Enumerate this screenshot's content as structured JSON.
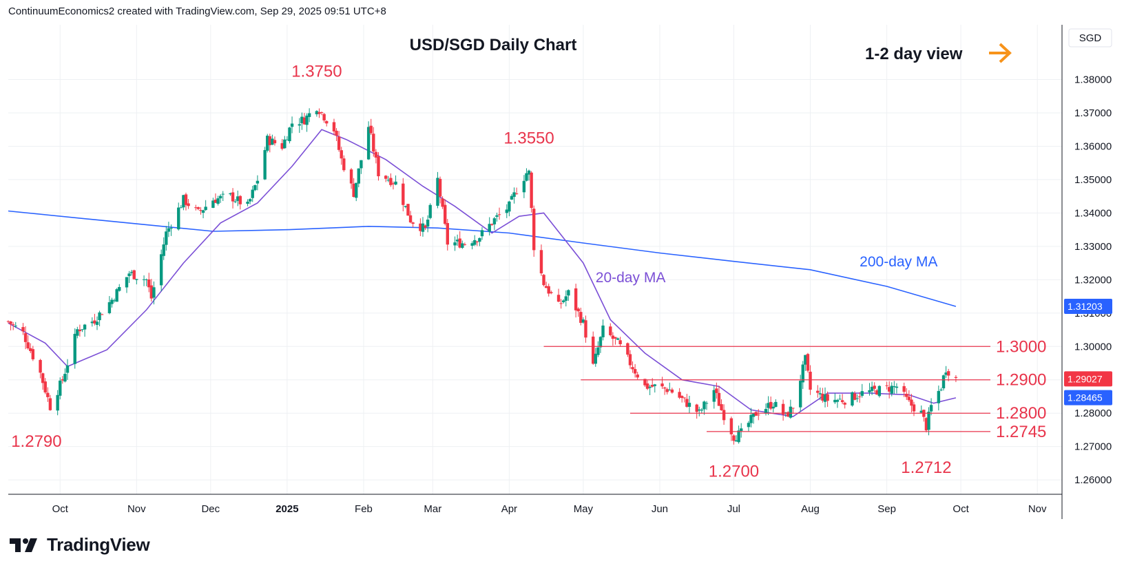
{
  "header": {
    "text": "ContinuumEconomics2 created with TradingView.com, Sep 29, 2025 09:51 UTC+8"
  },
  "logo": {
    "text": "TradingView"
  },
  "currency": "SGD",
  "colors": {
    "up": "#089981",
    "down": "#f23645",
    "ma20": "#7b4fd6",
    "ma200": "#2962ff",
    "level": "#e8344b",
    "arrow": "#f7931a",
    "grid": "#eef0f3"
  },
  "chart_data": {
    "type": "candlestick",
    "title": "USD/SGD Daily Chart",
    "subtitle": "1-2 day view",
    "x_ticks": [
      "Oct",
      "Nov",
      "Dec",
      "2025",
      "Feb",
      "Mar",
      "Apr",
      "May",
      "Jun",
      "Jul",
      "Aug",
      "Sep",
      "Oct",
      "Nov"
    ],
    "y_ticks": [
      "1.38000",
      "1.37000",
      "1.36000",
      "1.35000",
      "1.34000",
      "1.33000",
      "1.32000",
      "1.31000",
      "1.30000",
      "1.29000",
      "1.28000",
      "1.27000",
      "1.26000"
    ],
    "ylim": [
      1.2557,
      1.3964
    ],
    "grid": true,
    "price_path": [
      [
        "2024-09-10",
        1.3075
      ],
      [
        "2024-09-16",
        1.304
      ],
      [
        "2024-09-23",
        1.292
      ],
      [
        "2024-09-27",
        1.282
      ],
      [
        "2024-10-02",
        1.29
      ],
      [
        "2024-10-08",
        1.305
      ],
      [
        "2024-10-15",
        1.308
      ],
      [
        "2024-10-22",
        1.314
      ],
      [
        "2024-10-29",
        1.322
      ],
      [
        "2024-11-05",
        1.32
      ],
      [
        "2024-11-07",
        1.3145
      ],
      [
        "2024-11-13",
        1.334
      ],
      [
        "2024-11-20",
        1.344
      ],
      [
        "2024-11-26",
        1.34
      ],
      [
        "2024-12-02",
        1.344
      ],
      [
        "2024-12-09",
        1.345
      ],
      [
        "2024-12-16",
        1.342
      ],
      [
        "2024-12-20",
        1.35
      ],
      [
        "2024-12-24",
        1.362
      ],
      [
        "2024-12-30",
        1.36
      ],
      [
        "2025-01-03",
        1.367
      ],
      [
        "2025-01-08",
        1.368
      ],
      [
        "2025-01-13",
        1.372
      ],
      [
        "2025-01-20",
        1.365
      ],
      [
        "2025-01-23",
        1.356
      ],
      [
        "2025-01-28",
        1.346
      ],
      [
        "2025-02-03",
        1.366
      ],
      [
        "2025-02-07",
        1.352
      ],
      [
        "2025-02-14",
        1.349
      ],
      [
        "2025-02-20",
        1.338
      ],
      [
        "2025-02-26",
        1.335
      ],
      [
        "2025-03-03",
        1.35
      ],
      [
        "2025-03-07",
        1.331
      ],
      [
        "2025-03-14",
        1.331
      ],
      [
        "2025-03-20",
        1.333
      ],
      [
        "2025-03-26",
        1.338
      ],
      [
        "2025-04-01",
        1.342
      ],
      [
        "2025-04-04",
        1.347
      ],
      [
        "2025-04-08",
        1.352
      ],
      [
        "2025-04-09",
        1.352
      ],
      [
        "2025-04-11",
        1.33
      ],
      [
        "2025-04-15",
        1.319
      ],
      [
        "2025-04-21",
        1.312
      ],
      [
        "2025-04-25",
        1.316
      ],
      [
        "2025-05-01",
        1.307
      ],
      [
        "2025-05-05",
        1.294
      ],
      [
        "2025-05-09",
        1.305
      ],
      [
        "2025-05-15",
        1.301
      ],
      [
        "2025-05-20",
        1.295
      ],
      [
        "2025-05-26",
        1.288
      ],
      [
        "2025-05-30",
        1.288
      ],
      [
        "2025-06-05",
        1.287
      ],
      [
        "2025-06-12",
        1.283
      ],
      [
        "2025-06-17",
        1.28
      ],
      [
        "2025-06-23",
        1.287
      ],
      [
        "2025-06-26",
        1.281
      ],
      [
        "2025-07-01",
        1.273
      ],
      [
        "2025-07-04",
        1.274
      ],
      [
        "2025-07-10",
        1.28
      ],
      [
        "2025-07-17",
        1.283
      ],
      [
        "2025-07-22",
        1.279
      ],
      [
        "2025-07-25",
        1.282
      ],
      [
        "2025-07-30",
        1.296
      ],
      [
        "2025-08-01",
        1.287
      ],
      [
        "2025-08-08",
        1.284
      ],
      [
        "2025-08-15",
        1.284
      ],
      [
        "2025-08-22",
        1.286
      ],
      [
        "2025-08-29",
        1.287
      ],
      [
        "2025-09-05",
        1.288
      ],
      [
        "2025-09-10",
        1.283
      ],
      [
        "2025-09-15",
        1.28
      ],
      [
        "2025-09-17",
        1.276
      ],
      [
        "2025-09-19",
        1.282
      ],
      [
        "2025-09-23",
        1.288
      ],
      [
        "2025-09-25",
        1.2935
      ],
      [
        "2025-09-29",
        1.2903
      ]
    ],
    "ma200_path": [
      [
        "2024-09-10",
        1.3406
      ],
      [
        "2024-10-15",
        1.338
      ],
      [
        "2024-12-02",
        1.3345
      ],
      [
        "2025-01-02",
        1.335
      ],
      [
        "2025-02-03",
        1.336
      ],
      [
        "2025-03-03",
        1.3355
      ],
      [
        "2025-04-01",
        1.334
      ],
      [
        "2025-05-01",
        1.331
      ],
      [
        "2025-06-01",
        1.328
      ],
      [
        "2025-07-01",
        1.3255
      ],
      [
        "2025-08-01",
        1.323
      ],
      [
        "2025-09-01",
        1.318
      ],
      [
        "2025-09-29",
        1.312
      ]
    ],
    "ma20_path": [
      [
        "2024-09-10",
        1.307
      ],
      [
        "2024-09-25",
        1.301
      ],
      [
        "2024-10-04",
        1.294
      ],
      [
        "2024-10-20",
        1.299
      ],
      [
        "2024-11-05",
        1.311
      ],
      [
        "2024-11-20",
        1.325
      ],
      [
        "2024-12-05",
        1.337
      ],
      [
        "2024-12-20",
        1.343
      ],
      [
        "2025-01-03",
        1.354
      ],
      [
        "2025-01-15",
        1.365
      ],
      [
        "2025-01-25",
        1.362
      ],
      [
        "2025-02-10",
        1.356
      ],
      [
        "2025-02-25",
        1.348
      ],
      [
        "2025-03-10",
        1.342
      ],
      [
        "2025-03-25",
        1.334
      ],
      [
        "2025-04-05",
        1.339
      ],
      [
        "2025-04-15",
        1.34
      ],
      [
        "2025-05-01",
        1.325
      ],
      [
        "2025-05-12",
        1.308
      ],
      [
        "2025-05-26",
        1.298
      ],
      [
        "2025-06-10",
        1.29
      ],
      [
        "2025-06-25",
        1.288
      ],
      [
        "2025-07-08",
        1.281
      ],
      [
        "2025-07-25",
        1.279
      ],
      [
        "2025-08-08",
        1.286
      ],
      [
        "2025-08-25",
        1.286
      ],
      [
        "2025-09-10",
        1.2855
      ],
      [
        "2025-09-20",
        1.283
      ],
      [
        "2025-09-29",
        1.2846
      ]
    ],
    "levels": [
      {
        "value": 1.3,
        "label": "1.3000",
        "from": "2025-04-15"
      },
      {
        "value": 1.29,
        "label": "1.2900",
        "from": "2025-04-30"
      },
      {
        "value": 1.28,
        "label": "1.2800",
        "from": "2025-05-20"
      },
      {
        "value": 1.2745,
        "label": "1.2745",
        "from": "2025-06-20"
      }
    ],
    "price_annotations": [
      {
        "date": "2024-09-27",
        "value": 1.279,
        "label": "1.2790"
      },
      {
        "date": "2025-01-13",
        "value": 1.375,
        "label": "1.3750"
      },
      {
        "date": "2025-04-09",
        "value": 1.355,
        "label": "1.3550"
      },
      {
        "date": "2025-07-01",
        "value": 1.27,
        "label": "1.2700"
      },
      {
        "date": "2025-09-17",
        "value": 1.2712,
        "label": "1.2712"
      }
    ],
    "ma_labels": {
      "ma20": "20-day MA",
      "ma200": "200-day MA"
    },
    "badges": [
      {
        "value": 1.31203,
        "label": "1.31203",
        "color": "#2962ff"
      },
      {
        "value": 1.29027,
        "label": "1.29027",
        "color": "#f23645"
      },
      {
        "value": 1.28465,
        "label": "1.28465",
        "color": "#2962ff"
      }
    ]
  }
}
